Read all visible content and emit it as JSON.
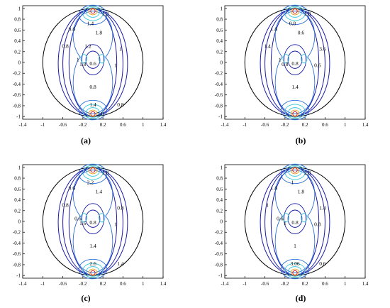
{
  "colors": {
    "frame": "#000000",
    "circle": "#000000",
    "contour_low": "#1a1aa8",
    "contour_mid": "#2a6fd6",
    "contour_cyan": "#3fc8d8",
    "contour_hot": "#e8a020",
    "contour_red": "#d01010"
  },
  "chart_data": [
    {
      "type": "contour",
      "caption": "(a)",
      "xlim": [
        -1.4,
        1.4
      ],
      "ylim": [
        -1.05,
        1.05
      ],
      "xticks": [
        "-1.4",
        "-1",
        "-0.6",
        "-0.2",
        "0.2",
        "0.6",
        "1",
        "1.4"
      ],
      "yticks": [
        "1",
        "0.8",
        "0.6",
        "0.4",
        "0.2",
        "0",
        "-0.2",
        "-0.4",
        "-0.6",
        "-0.8",
        "-1"
      ],
      "labels": [
        "0.8",
        "1.4",
        "1.2",
        "1.8",
        "0.8",
        "1",
        "1.8",
        "0.6",
        "0.8",
        "1",
        "1",
        "0.8",
        "1.4",
        "2.6",
        "1.2"
      ]
    },
    {
      "type": "contour",
      "caption": "(b)",
      "xlim": [
        -1.4,
        1.4
      ],
      "ylim": [
        -1.05,
        1.05
      ],
      "xticks": [
        "-1.4",
        "-1",
        "-0.6",
        "-0.2",
        "0.2",
        "0.6",
        "1",
        "1.4"
      ],
      "yticks": [
        "1",
        "0.8",
        "0.6",
        "0.4",
        "0.2",
        "0",
        "-0.2",
        "-0.4",
        "-0.6",
        "-0.8",
        "-1"
      ],
      "labels": [
        "1.8",
        "0.8",
        "1.8",
        "0.6",
        "1.4",
        "1",
        "0.8",
        "0.8",
        "1.4",
        "0.6",
        "3.6"
      ]
    },
    {
      "type": "contour",
      "caption": "(c)",
      "xlim": [
        -1.4,
        1.4
      ],
      "ylim": [
        -1.05,
        1.05
      ],
      "xticks": [
        "-1.4",
        "-1",
        "-0.6",
        "-0.2",
        "0.2",
        "0.6",
        "1",
        "1.4"
      ],
      "yticks": [
        "1",
        "0.8",
        "0.6",
        "0.4",
        "0.2",
        "0",
        "-0.2",
        "-0.4",
        "-0.6",
        "-0.8",
        "-1"
      ],
      "labels": [
        "0.6",
        "2.2",
        "1.8",
        "1.4",
        "0.8",
        "0.6",
        "1.6",
        "0.8",
        "1.4",
        "1",
        "0.8",
        "1.4",
        "2.6"
      ]
    },
    {
      "type": "contour",
      "caption": "(d)",
      "xlim": [
        -1.4,
        1.4
      ],
      "ylim": [
        -1.05,
        1.05
      ],
      "xticks": [
        "-1.4",
        "-1",
        "-0.6",
        "-0.2",
        "0.2",
        "0.6",
        "1",
        "1.4"
      ],
      "yticks": [
        "1",
        "0.8",
        "0.6",
        "0.4",
        "0.2",
        "0",
        "-0.2",
        "-0.4",
        "-0.6",
        "-0.8",
        "-1"
      ],
      "labels": [
        "1.8",
        "1",
        "2.8",
        "1.8",
        "1",
        "0.6",
        "1",
        "0.8",
        "1",
        "0.8",
        "1.4",
        "0.6",
        "3.06"
      ]
    }
  ]
}
